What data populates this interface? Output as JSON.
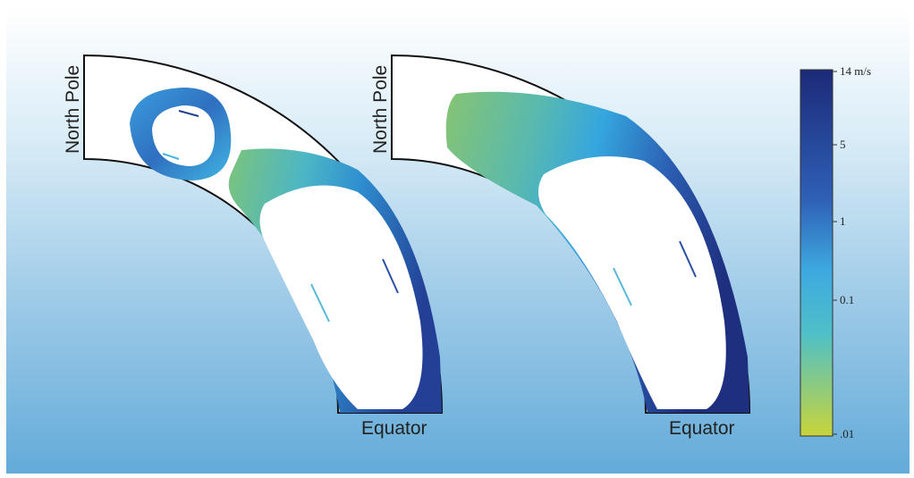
{
  "panels": [
    {
      "pole_label": "North Pole",
      "equator_label": "Equator"
    },
    {
      "pole_label": "North Pole",
      "equator_label": "Equator"
    }
  ],
  "colorbar": {
    "ticks": [
      "14 m/s",
      "5",
      "1",
      "0.1",
      ".01"
    ],
    "colors": [
      "#1f2f7f",
      "#2d56b0",
      "#3aa8df",
      "#5cc0c0",
      "#c0d23a"
    ]
  }
}
